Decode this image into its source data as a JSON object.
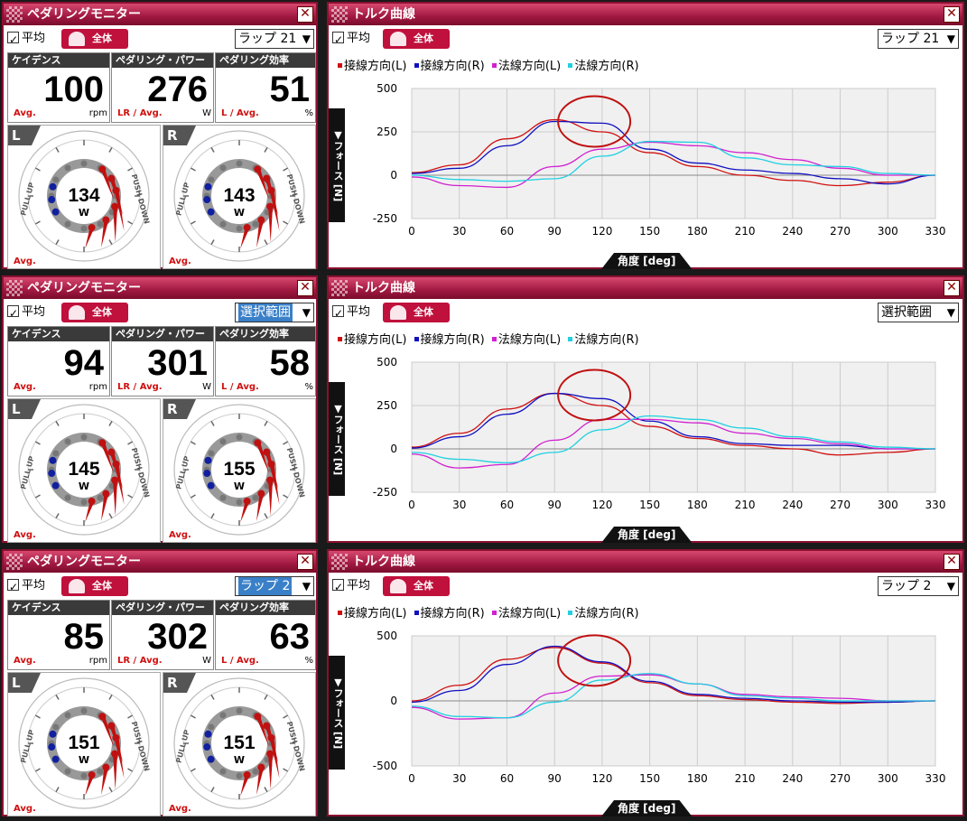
{
  "common": {
    "monitor_title": "ペダリングモニター",
    "torque_title": "トルク曲線",
    "close": "✕",
    "avg_label": "平均",
    "logo_text": "全体",
    "metric_headers": [
      "ケイデンス",
      "ペダリング・パワー",
      "ペダリング効率"
    ],
    "metric_units": [
      "rpm",
      "W",
      "%"
    ],
    "metric_avg_labels": [
      "Avg.",
      "LR / Avg.",
      "L / Avg."
    ],
    "side_left": "L",
    "side_right": "R",
    "dial_unit": "W",
    "dial_avg": "Avg.",
    "pull_up": "PULL UP",
    "push_down": "PUSH DOWN",
    "ylabel": "▼フォース [N]",
    "xlabel": "角度 [deg]",
    "legend": [
      "接線方向(L)",
      "接線方向(R)",
      "法線方向(L)",
      "法線方向(R)"
    ],
    "series_colors": [
      "#d01010",
      "#1010c0",
      "#d020d0",
      "#20d0e0"
    ],
    "highlight_color": "#c01010"
  },
  "rows": [
    {
      "lap_select": "ラップ 21",
      "lap_highlight": false,
      "cadence": "100",
      "power": "276",
      "efficiency": "51",
      "left_power": "134",
      "right_power": "143"
    },
    {
      "lap_select": "選択範囲",
      "lap_highlight": true,
      "cadence": "94",
      "power": "301",
      "efficiency": "58",
      "left_power": "145",
      "right_power": "155"
    },
    {
      "lap_select": "ラップ 2",
      "lap_highlight": true,
      "cadence": "85",
      "power": "302",
      "efficiency": "63",
      "left_power": "151",
      "right_power": "151"
    }
  ],
  "chart_data": [
    {
      "type": "line",
      "title": "トルク曲線",
      "xlabel": "角度 [deg]",
      "ylabel": "フォース [N]",
      "xlim": [
        0,
        330
      ],
      "ylim": [
        -250,
        500
      ],
      "x": [
        0,
        30,
        60,
        90,
        120,
        150,
        180,
        210,
        240,
        270,
        300,
        330
      ],
      "yticks": [
        500,
        250,
        0,
        -250
      ],
      "series": [
        {
          "name": "接線方向(L)",
          "values": [
            15,
            60,
            210,
            320,
            250,
            130,
            50,
            0,
            -30,
            -60,
            -40,
            0
          ]
        },
        {
          "name": "接線方向(R)",
          "values": [
            10,
            40,
            170,
            310,
            300,
            150,
            70,
            30,
            10,
            -20,
            -50,
            0
          ]
        },
        {
          "name": "法線方向(L)",
          "values": [
            -10,
            -60,
            -70,
            50,
            150,
            190,
            170,
            130,
            90,
            40,
            0,
            0
          ]
        },
        {
          "name": "法線方向(R)",
          "values": [
            0,
            -25,
            -35,
            -20,
            110,
            195,
            190,
            100,
            60,
            50,
            10,
            0
          ]
        }
      ],
      "grid": true,
      "legend": "top-left"
    },
    {
      "type": "line",
      "title": "トルク曲線",
      "xlabel": "角度 [deg]",
      "ylabel": "フォース [N]",
      "xlim": [
        0,
        330
      ],
      "ylim": [
        -250,
        500
      ],
      "x": [
        0,
        30,
        60,
        90,
        120,
        150,
        180,
        210,
        240,
        270,
        300,
        330
      ],
      "yticks": [
        500,
        250,
        0,
        -250
      ],
      "series": [
        {
          "name": "接線方向(L)",
          "values": [
            10,
            90,
            230,
            320,
            250,
            130,
            60,
            20,
            0,
            -35,
            -20,
            0
          ]
        },
        {
          "name": "接線方向(R)",
          "values": [
            5,
            70,
            200,
            320,
            290,
            160,
            70,
            30,
            20,
            20,
            0,
            0
          ]
        },
        {
          "name": "法線方向(L)",
          "values": [
            -30,
            -110,
            -90,
            50,
            170,
            170,
            150,
            90,
            60,
            30,
            0,
            0
          ]
        },
        {
          "name": "法線方向(R)",
          "values": [
            -20,
            -60,
            -80,
            -20,
            110,
            190,
            170,
            120,
            70,
            40,
            10,
            0
          ]
        }
      ],
      "grid": true,
      "legend": "top-left"
    },
    {
      "type": "line",
      "title": "トルク曲線",
      "xlabel": "角度 [deg]",
      "ylabel": "フォース [N]",
      "xlim": [
        0,
        330
      ],
      "ylim": [
        -500,
        500
      ],
      "x": [
        0,
        30,
        60,
        90,
        120,
        150,
        180,
        210,
        240,
        270,
        300,
        330
      ],
      "yticks": [
        500,
        0,
        -500
      ],
      "series": [
        {
          "name": "接線方向(L)",
          "values": [
            0,
            120,
            320,
            410,
            290,
            140,
            40,
            10,
            -10,
            -20,
            -10,
            0
          ]
        },
        {
          "name": "接線方向(R)",
          "values": [
            -10,
            80,
            280,
            420,
            300,
            150,
            50,
            20,
            0,
            -10,
            -10,
            0
          ]
        },
        {
          "name": "法線方向(L)",
          "values": [
            -50,
            -140,
            -130,
            60,
            190,
            200,
            130,
            50,
            30,
            20,
            0,
            0
          ]
        },
        {
          "name": "法線方向(R)",
          "values": [
            -40,
            -120,
            -130,
            -10,
            160,
            210,
            130,
            40,
            20,
            0,
            0,
            0
          ]
        }
      ],
      "grid": true,
      "legend": "top-left"
    }
  ]
}
